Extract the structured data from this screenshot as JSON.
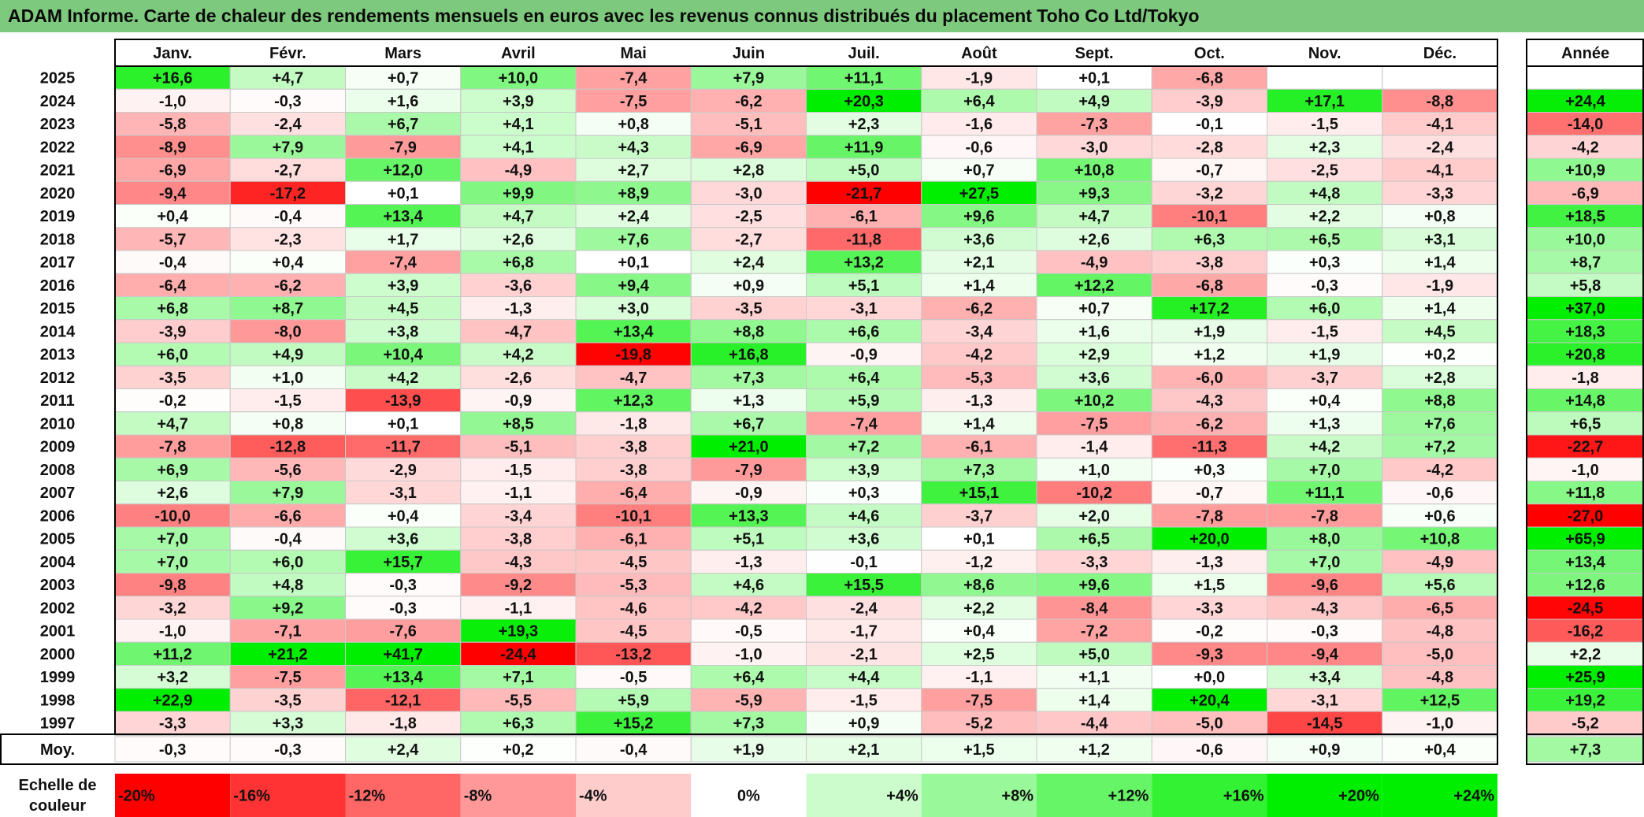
{
  "title": "ADAM Informe. Carte de chaleur des rendements mensuels en euros avec les revenus connus distribués du placement Toho Co Ltd/Tokyo",
  "chart_data": {
    "type": "heatmap",
    "columns": [
      "Janv.",
      "Févr.",
      "Mars",
      "Avril",
      "Mai",
      "Juin",
      "Juil.",
      "Août",
      "Sept.",
      "Oct.",
      "Nov.",
      "Déc."
    ],
    "year_header": "Année",
    "rows": [
      {
        "year": "2025",
        "months": [
          "+16,6",
          "+4,7",
          "+0,7",
          "+10,0",
          "-7,4",
          "+7,9",
          "+11,1",
          "-1,9",
          "+0,1",
          "-6,8",
          "",
          ""
        ],
        "annual": ""
      },
      {
        "year": "2024",
        "months": [
          "-1,0",
          "-0,3",
          "+1,6",
          "+3,9",
          "-7,5",
          "-6,2",
          "+20,3",
          "+6,4",
          "+4,9",
          "-3,9",
          "+17,1",
          "-8,8"
        ],
        "annual": "+24,4"
      },
      {
        "year": "2023",
        "months": [
          "-5,8",
          "-2,4",
          "+6,7",
          "+4,1",
          "+0,8",
          "-5,1",
          "+2,3",
          "-1,6",
          "-7,3",
          "-0,1",
          "-1,5",
          "-4,1"
        ],
        "annual": "-14,0"
      },
      {
        "year": "2022",
        "months": [
          "-8,9",
          "+7,9",
          "-7,9",
          "+4,1",
          "+4,3",
          "-6,9",
          "+11,9",
          "-0,6",
          "-3,0",
          "-2,8",
          "+2,3",
          "-2,4"
        ],
        "annual": "-4,2"
      },
      {
        "year": "2021",
        "months": [
          "-6,9",
          "-2,7",
          "+12,0",
          "-4,9",
          "+2,7",
          "+2,8",
          "+5,0",
          "+0,7",
          "+10,8",
          "-0,7",
          "-2,5",
          "-4,1"
        ],
        "annual": "+10,9"
      },
      {
        "year": "2020",
        "months": [
          "-9,4",
          "-17,2",
          "+0,1",
          "+9,9",
          "+8,9",
          "-3,0",
          "-21,7",
          "+27,5",
          "+9,3",
          "-3,2",
          "+4,8",
          "-3,3"
        ],
        "annual": "-6,9"
      },
      {
        "year": "2019",
        "months": [
          "+0,4",
          "-0,4",
          "+13,4",
          "+4,7",
          "+2,4",
          "-2,5",
          "-6,1",
          "+9,6",
          "+4,7",
          "-10,1",
          "+2,2",
          "+0,8"
        ],
        "annual": "+18,5"
      },
      {
        "year": "2018",
        "months": [
          "-5,7",
          "-2,3",
          "+1,7",
          "+2,6",
          "+7,6",
          "-2,7",
          "-11,8",
          "+3,6",
          "+2,6",
          "+6,3",
          "+6,5",
          "+3,1"
        ],
        "annual": "+10,0"
      },
      {
        "year": "2017",
        "months": [
          "-0,4",
          "+0,4",
          "-7,4",
          "+6,8",
          "+0,1",
          "+2,4",
          "+13,2",
          "+2,1",
          "-4,9",
          "-3,8",
          "+0,3",
          "+1,4"
        ],
        "annual": "+8,7"
      },
      {
        "year": "2016",
        "months": [
          "-6,4",
          "-6,2",
          "+3,9",
          "-3,6",
          "+9,4",
          "+0,9",
          "+5,1",
          "+1,4",
          "+12,2",
          "-6,8",
          "-0,3",
          "-1,9"
        ],
        "annual": "+5,8"
      },
      {
        "year": "2015",
        "months": [
          "+6,8",
          "+8,7",
          "+4,5",
          "-1,3",
          "+3,0",
          "-3,5",
          "-3,1",
          "-6,2",
          "+0,7",
          "+17,2",
          "+6,0",
          "+1,4"
        ],
        "annual": "+37,0"
      },
      {
        "year": "2014",
        "months": [
          "-3,9",
          "-8,0",
          "+3,8",
          "-4,7",
          "+13,4",
          "+8,8",
          "+6,6",
          "-3,4",
          "+1,6",
          "+1,9",
          "-1,5",
          "+4,5"
        ],
        "annual": "+18,3"
      },
      {
        "year": "2013",
        "months": [
          "+6,0",
          "+4,9",
          "+10,4",
          "+4,2",
          "-19,8",
          "+16,8",
          "-0,9",
          "-4,2",
          "+2,9",
          "+1,2",
          "+1,9",
          "+0,2"
        ],
        "annual": "+20,8"
      },
      {
        "year": "2012",
        "months": [
          "-3,5",
          "+1,0",
          "+4,2",
          "-2,6",
          "-4,7",
          "+7,3",
          "+6,4",
          "-5,3",
          "+3,6",
          "-6,0",
          "-3,7",
          "+2,8"
        ],
        "annual": "-1,8"
      },
      {
        "year": "2011",
        "months": [
          "-0,2",
          "-1,5",
          "-13,9",
          "-0,9",
          "+12,3",
          "+1,3",
          "+5,9",
          "-1,3",
          "+10,2",
          "-4,3",
          "+0,4",
          "+8,8"
        ],
        "annual": "+14,8"
      },
      {
        "year": "2010",
        "months": [
          "+4,7",
          "+0,8",
          "+0,1",
          "+8,5",
          "-1,8",
          "+6,7",
          "-7,4",
          "+1,4",
          "-7,5",
          "-6,2",
          "+1,3",
          "+7,6"
        ],
        "annual": "+6,5"
      },
      {
        "year": "2009",
        "months": [
          "-7,8",
          "-12,8",
          "-11,7",
          "-5,1",
          "-3,8",
          "+21,0",
          "+7,2",
          "-6,1",
          "-1,4",
          "-11,3",
          "+4,2",
          "+7,2"
        ],
        "annual": "-22,7"
      },
      {
        "year": "2008",
        "months": [
          "+6,9",
          "-5,6",
          "-2,9",
          "-1,5",
          "-3,8",
          "-7,9",
          "+3,9",
          "+7,3",
          "+1,0",
          "+0,3",
          "+7,0",
          "-4,2"
        ],
        "annual": "-1,0"
      },
      {
        "year": "2007",
        "months": [
          "+2,6",
          "+7,9",
          "-3,1",
          "-1,1",
          "-6,4",
          "-0,9",
          "+0,3",
          "+15,1",
          "-10,2",
          "-0,7",
          "+11,1",
          "-0,6"
        ],
        "annual": "+11,8"
      },
      {
        "year": "2006",
        "months": [
          "-10,0",
          "-6,6",
          "+0,4",
          "-3,4",
          "-10,1",
          "+13,3",
          "+4,6",
          "-3,7",
          "+2,0",
          "-7,8",
          "-7,8",
          "+0,6"
        ],
        "annual": "-27,0"
      },
      {
        "year": "2005",
        "months": [
          "+7,0",
          "-0,4",
          "+3,6",
          "-3,8",
          "-6,1",
          "+5,1",
          "+3,6",
          "+0,1",
          "+6,5",
          "+20,0",
          "+8,0",
          "+10,8"
        ],
        "annual": "+65,9"
      },
      {
        "year": "2004",
        "months": [
          "+7,0",
          "+6,0",
          "+15,7",
          "-4,3",
          "-4,5",
          "-1,3",
          "-0,1",
          "-1,2",
          "-3,3",
          "-1,3",
          "+7,0",
          "-4,9"
        ],
        "annual": "+13,4"
      },
      {
        "year": "2003",
        "months": [
          "-9,8",
          "+4,8",
          "-0,3",
          "-9,2",
          "-5,3",
          "+4,6",
          "+15,5",
          "+8,6",
          "+9,6",
          "+1,5",
          "-9,6",
          "+5,6"
        ],
        "annual": "+12,6"
      },
      {
        "year": "2002",
        "months": [
          "-3,2",
          "+9,2",
          "-0,3",
          "-1,1",
          "-4,6",
          "-4,2",
          "-2,4",
          "+2,2",
          "-8,4",
          "-3,3",
          "-4,3",
          "-6,5"
        ],
        "annual": "-24,5"
      },
      {
        "year": "2001",
        "months": [
          "-1,0",
          "-7,1",
          "-7,6",
          "+19,3",
          "-4,5",
          "-0,5",
          "-1,7",
          "+0,4",
          "-7,2",
          "-0,2",
          "-0,3",
          "-4,8"
        ],
        "annual": "-16,2"
      },
      {
        "year": "2000",
        "months": [
          "+11,2",
          "+21,2",
          "+41,7",
          "-24,4",
          "-13,2",
          "-1,0",
          "-2,1",
          "+2,5",
          "+5,0",
          "-9,3",
          "-9,4",
          "-5,0"
        ],
        "annual": "+2,2"
      },
      {
        "year": "1999",
        "months": [
          "+3,2",
          "-7,5",
          "+13,4",
          "+7,1",
          "-0,5",
          "+6,4",
          "+4,4",
          "-1,1",
          "+1,1",
          "+0,0",
          "+3,4",
          "-4,8"
        ],
        "annual": "+25,9"
      },
      {
        "year": "1998",
        "months": [
          "+22,9",
          "-3,5",
          "-12,1",
          "-5,5",
          "+5,9",
          "-5,9",
          "-1,5",
          "-7,5",
          "+1,4",
          "+20,4",
          "-3,1",
          "+12,5"
        ],
        "annual": "+19,2"
      },
      {
        "year": "1997",
        "months": [
          "-3,3",
          "+3,3",
          "-1,8",
          "+6,3",
          "+15,2",
          "+7,3",
          "+0,9",
          "-5,2",
          "-4,4",
          "-5,0",
          "-14,5",
          "-1,0"
        ],
        "annual": "-5,2"
      }
    ],
    "average_row": {
      "label": "Moy.",
      "months": [
        "-0,3",
        "-0,3",
        "+2,4",
        "+0,2",
        "-0,4",
        "+1,9",
        "+2,1",
        "+1,5",
        "+1,2",
        "-0,6",
        "+0,9",
        "+0,4"
      ],
      "annual": "+7,3"
    },
    "scale": {
      "label_line1": "Echelle de",
      "label_line2": "couleur",
      "steps": [
        "-20%",
        "-16%",
        "-12%",
        "-8%",
        "-4%",
        "0%",
        "+4%",
        "+8%",
        "+12%",
        "+16%",
        "+20%",
        "+24%"
      ],
      "step_values": [
        -20,
        -16,
        -12,
        -8,
        -4,
        0,
        4,
        8,
        12,
        16,
        20,
        24
      ]
    },
    "colors": {
      "negative_extreme": "#ff0000",
      "neutral": "#ffffff",
      "positive_extreme": "#00ee00",
      "title_bg": "#7dc97d"
    }
  }
}
